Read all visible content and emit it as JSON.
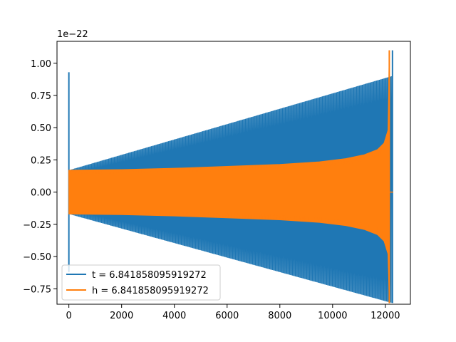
{
  "chart_data": {
    "type": "line",
    "title": "",
    "xlabel": "",
    "ylabel": "",
    "y_offset_label": "1e−22",
    "xlim": [
      -450,
      12950
    ],
    "ylim": [
      -0.87,
      1.17
    ],
    "x_ticks": [
      {
        "value": 0,
        "label": "0"
      },
      {
        "value": 2000,
        "label": "2000"
      },
      {
        "value": 4000,
        "label": "4000"
      },
      {
        "value": 6000,
        "label": "6000"
      },
      {
        "value": 8000,
        "label": "8000"
      },
      {
        "value": 10000,
        "label": "10000"
      },
      {
        "value": 12000,
        "label": "12000"
      }
    ],
    "y_ticks": [
      {
        "value": -0.75,
        "label": "−0.75"
      },
      {
        "value": -0.5,
        "label": "−0.50"
      },
      {
        "value": -0.25,
        "label": "−0.25"
      },
      {
        "value": 0.0,
        "label": "0.00"
      },
      {
        "value": 0.25,
        "label": "0.25"
      },
      {
        "value": 0.5,
        "label": "0.50"
      },
      {
        "value": 0.75,
        "label": "0.75"
      },
      {
        "value": 1.0,
        "label": "1.00"
      }
    ],
    "grid": false,
    "legend_position": "lower-left",
    "series": [
      {
        "name": "t = 6.841858095919272",
        "color": "#1f77b4",
        "spikes": [
          {
            "x": 0,
            "y_min": -0.62,
            "y_max": 0.93
          },
          {
            "x": 12270,
            "y_min": -0.86,
            "y_max": 1.1
          }
        ],
        "envelope": [
          {
            "x": 0,
            "upper": 0.17,
            "lower": -0.17
          },
          {
            "x": 12250,
            "upper": 0.9,
            "lower": -0.86
          }
        ]
      },
      {
        "name": "h = 6.841858095919272",
        "color": "#ff7f0e",
        "spikes": [
          {
            "x": 12150,
            "y_min": -0.86,
            "y_max": 1.1
          }
        ],
        "envelope": [
          {
            "x": 0,
            "upper": 0.17,
            "lower": -0.17
          },
          {
            "x": 2000,
            "upper": 0.175,
            "lower": -0.175
          },
          {
            "x": 4000,
            "upper": 0.185,
            "lower": -0.185
          },
          {
            "x": 6000,
            "upper": 0.2,
            "lower": -0.2
          },
          {
            "x": 8000,
            "upper": 0.215,
            "lower": -0.215
          },
          {
            "x": 9500,
            "upper": 0.235,
            "lower": -0.235
          },
          {
            "x": 10500,
            "upper": 0.26,
            "lower": -0.26
          },
          {
            "x": 11200,
            "upper": 0.29,
            "lower": -0.29
          },
          {
            "x": 11700,
            "upper": 0.33,
            "lower": -0.33
          },
          {
            "x": 11950,
            "upper": 0.38,
            "lower": -0.38
          },
          {
            "x": 12100,
            "upper": 0.48,
            "lower": -0.48
          },
          {
            "x": 12150,
            "upper": 1.1,
            "lower": -0.86
          }
        ],
        "tail": [
          {
            "x": 12150,
            "y": 0.0
          },
          {
            "x": 12300,
            "y": 0.0
          }
        ]
      }
    ]
  }
}
